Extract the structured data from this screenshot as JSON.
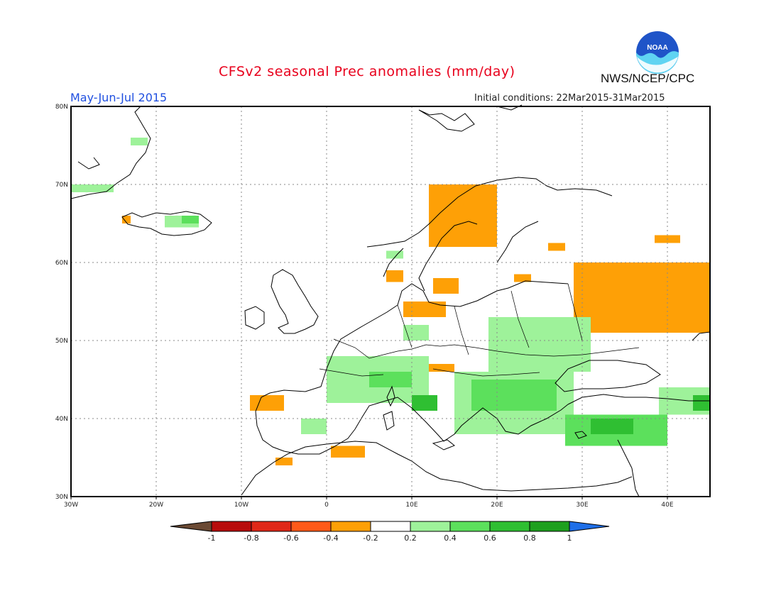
{
  "header": {
    "title": "CFSv2 seasonal Prec anomalies (mm/day)",
    "period": "May-Jun-Jul 2015",
    "initial_conditions": "Initial conditions: 22Mar2015-31Mar2015",
    "agency": "NWS/NCEP/CPC",
    "logo_text": "NOAA"
  },
  "colors": {
    "title": "#e8001c",
    "period": "#1f4fe0",
    "wet_light": "#9ef29a",
    "wet_mid": "#5ce05c",
    "wet_strong": "#2fbf32",
    "wet_max": "#1ea01e",
    "dry_light": "#fea006",
    "dry_mid": "#ff5a18",
    "dry_strong": "#e02818",
    "dry_max": "#b80c0c"
  },
  "map": {
    "lon_labels": [
      "30W",
      "20W",
      "10W",
      "0",
      "10E",
      "20E",
      "30E",
      "40E"
    ],
    "lat_labels": [
      "80N",
      "70N",
      "60N",
      "50N",
      "40N",
      "30N"
    ]
  },
  "colorbar": {
    "labels": [
      "-1",
      "-0.8",
      "-0.6",
      "-0.4",
      "-0.2",
      "0.2",
      "0.4",
      "0.6",
      "0.8",
      "1"
    ],
    "colors": [
      "#6b4a34",
      "#b80c0c",
      "#e02818",
      "#ff5a18",
      "#fea006",
      "#ffffff",
      "#9ef29a",
      "#5ce05c",
      "#2fbf32",
      "#1ea01e",
      "#1f6fe8"
    ]
  },
  "chart_data": {
    "type": "heatmap",
    "title": "CFSv2 seasonal Prec anomalies (mm/day)",
    "subtitle": "May-Jun-Jul 2015",
    "xlim": [
      -30,
      45
    ],
    "ylim": [
      30,
      80
    ],
    "units": "mm/day",
    "regions": [
      {
        "lon": [
          -30,
          -25
        ],
        "lat": [
          69,
          70
        ],
        "value": 0.3
      },
      {
        "lon": [
          -23,
          -21
        ],
        "lat": [
          75,
          76
        ],
        "value": 0.3
      },
      {
        "lon": [
          -19,
          -15
        ],
        "lat": [
          64.5,
          66
        ],
        "value": 0.3
      },
      {
        "lon": [
          -17,
          -15
        ],
        "lat": [
          65,
          66
        ],
        "value": 0.5
      },
      {
        "lon": [
          -24,
          -23
        ],
        "lat": [
          65,
          66
        ],
        "value": -0.3
      },
      {
        "lon": [
          7,
          9
        ],
        "lat": [
          60.5,
          61.5
        ],
        "value": 0.3
      },
      {
        "lon": [
          12,
          20
        ],
        "lat": [
          62,
          70
        ],
        "value": -0.3
      },
      {
        "lon": [
          7,
          9
        ],
        "lat": [
          57.5,
          59
        ],
        "value": -0.3
      },
      {
        "lon": [
          12.5,
          15.5
        ],
        "lat": [
          56,
          58
        ],
        "value": -0.3
      },
      {
        "lon": [
          9,
          14
        ],
        "lat": [
          53,
          55
        ],
        "value": -0.3
      },
      {
        "lon": [
          22,
          24
        ],
        "lat": [
          57.5,
          58.5
        ],
        "value": -0.3
      },
      {
        "lon": [
          26,
          28
        ],
        "lat": [
          61.5,
          62.5
        ],
        "value": -0.3
      },
      {
        "lon": [
          29,
          45
        ],
        "lat": [
          51,
          60
        ],
        "value": -0.3
      },
      {
        "lon": [
          38.5,
          41.5
        ],
        "lat": [
          62.5,
          63.5
        ],
        "value": -0.3
      },
      {
        "lon": [
          -9,
          -5
        ],
        "lat": [
          41,
          43
        ],
        "value": -0.3
      },
      {
        "lon": [
          0.5,
          4.5
        ],
        "lat": [
          35,
          36.5
        ],
        "value": -0.3
      },
      {
        "lon": [
          -6,
          -4
        ],
        "lat": [
          34,
          35
        ],
        "value": -0.3
      },
      {
        "lon": [
          12,
          15
        ],
        "lat": [
          46,
          47
        ],
        "value": -0.3
      },
      {
        "lon": [
          9,
          12
        ],
        "lat": [
          50,
          52
        ],
        "value": 0.3
      },
      {
        "lon": [
          19,
          31
        ],
        "lat": [
          46,
          53
        ],
        "value": 0.3
      },
      {
        "lon": [
          0,
          12
        ],
        "lat": [
          42,
          48
        ],
        "value": 0.3
      },
      {
        "lon": [
          5,
          10
        ],
        "lat": [
          44,
          46
        ],
        "value": 0.5
      },
      {
        "lon": [
          10,
          13
        ],
        "lat": [
          41,
          43
        ],
        "value": 0.7
      },
      {
        "lon": [
          -3,
          0
        ],
        "lat": [
          38,
          40
        ],
        "value": 0.3
      },
      {
        "lon": [
          15,
          29
        ],
        "lat": [
          38,
          46
        ],
        "value": 0.3
      },
      {
        "lon": [
          17,
          27
        ],
        "lat": [
          41,
          45
        ],
        "value": 0.5
      },
      {
        "lon": [
          28,
          40
        ],
        "lat": [
          36.5,
          40.5
        ],
        "value": 0.5
      },
      {
        "lon": [
          31,
          36
        ],
        "lat": [
          38,
          40
        ],
        "value": 0.7
      },
      {
        "lon": [
          39,
          45
        ],
        "lat": [
          40.5,
          44
        ],
        "value": 0.3
      },
      {
        "lon": [
          43,
          45
        ],
        "lat": [
          41,
          43
        ],
        "value": 0.7
      }
    ]
  }
}
